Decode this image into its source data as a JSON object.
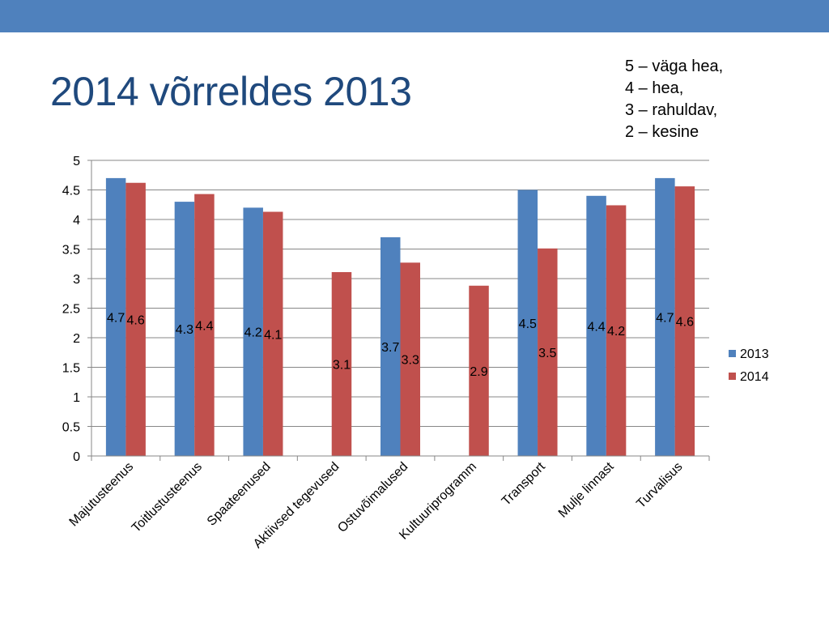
{
  "header": {
    "band_color": "#4f81bd"
  },
  "slide": {
    "title": "2014 võrreldes 2013",
    "title_color": "#1f497d",
    "scale_note": [
      "5 – väga hea,",
      "4 – hea,",
      "3 – rahuldav,",
      "2 – kesine"
    ]
  },
  "chart_data": {
    "type": "bar",
    "title": "",
    "xlabel": "",
    "ylabel": "",
    "categories": [
      "Majutusteenus",
      "Toitlustusteenus",
      "Spaateenused",
      "Aktiivsed tegevused",
      "Ostuvõimalused",
      "Kultuuriprogramm",
      "Transport",
      "Mulje linnast",
      "Turvalisus"
    ],
    "series": [
      {
        "name": "2013",
        "color": "#4f81bd",
        "values": [
          4.7,
          4.3,
          4.2,
          null,
          3.7,
          null,
          4.5,
          4.4,
          4.7
        ]
      },
      {
        "name": "2014",
        "color": "#c0504d",
        "values": [
          4.62,
          4.43,
          4.13,
          3.11,
          3.27,
          2.88,
          3.51,
          4.24,
          4.56
        ]
      }
    ],
    "data_labels": [
      [
        "4.7",
        "4.3",
        "4.2",
        "",
        "3.7",
        "",
        "4.5",
        "4.4",
        "4.7"
      ],
      [
        "4.6",
        "4.4",
        "4.1",
        "3.1",
        "3.3",
        "2.9",
        "3.5",
        "4.2",
        "4.6"
      ]
    ],
    "ylim": [
      0,
      5
    ],
    "yticks": [
      0,
      0.5,
      1,
      1.5,
      2,
      2.5,
      3,
      3.5,
      4,
      4.5,
      5
    ],
    "ytick_labels": [
      "0",
      "0.5",
      "1",
      "1.5",
      "2",
      "2.5",
      "3",
      "3.5",
      "4",
      "4.5",
      "5"
    ],
    "grid": true,
    "legend": "right"
  }
}
